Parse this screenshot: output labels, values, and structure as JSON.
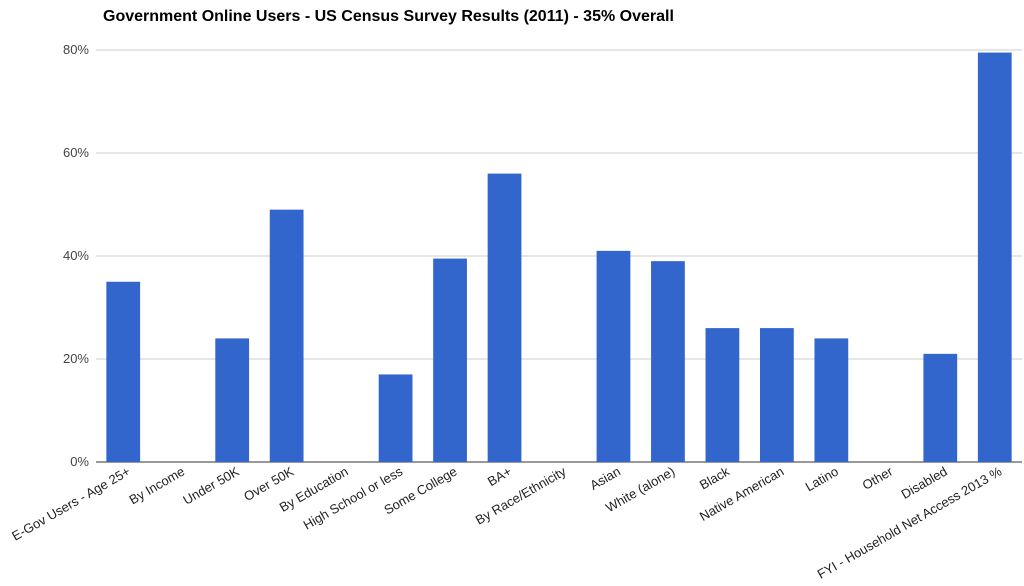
{
  "chart_data": {
    "type": "bar",
    "title": "Government Online Users - US Census Survey Results (2011) - 35% Overall",
    "xlabel": "",
    "ylabel": "",
    "ylim": [
      0,
      80
    ],
    "y_ticks": [
      "0%",
      "20%",
      "40%",
      "60%",
      "80%"
    ],
    "y_tick_values": [
      0,
      20,
      40,
      60,
      80
    ],
    "grid": true,
    "legend": "none",
    "bar_color": "#3366cc",
    "categories": [
      "E-Gov Users - Age 25+",
      "By Income",
      "Under 50K",
      "Over 50K",
      "By Education",
      "High School or less",
      "Some College",
      "BA+",
      "By Race/Ethnicity",
      "Asian",
      "White (alone)",
      "Black",
      "Native American",
      "Latino",
      "Other",
      "Disabled",
      "FYI - Household Net Access 2013 %"
    ],
    "values": [
      35,
      0,
      24,
      49,
      0,
      17,
      39.5,
      56,
      0,
      41,
      39,
      26,
      26,
      24,
      0,
      21,
      79.5
    ]
  }
}
